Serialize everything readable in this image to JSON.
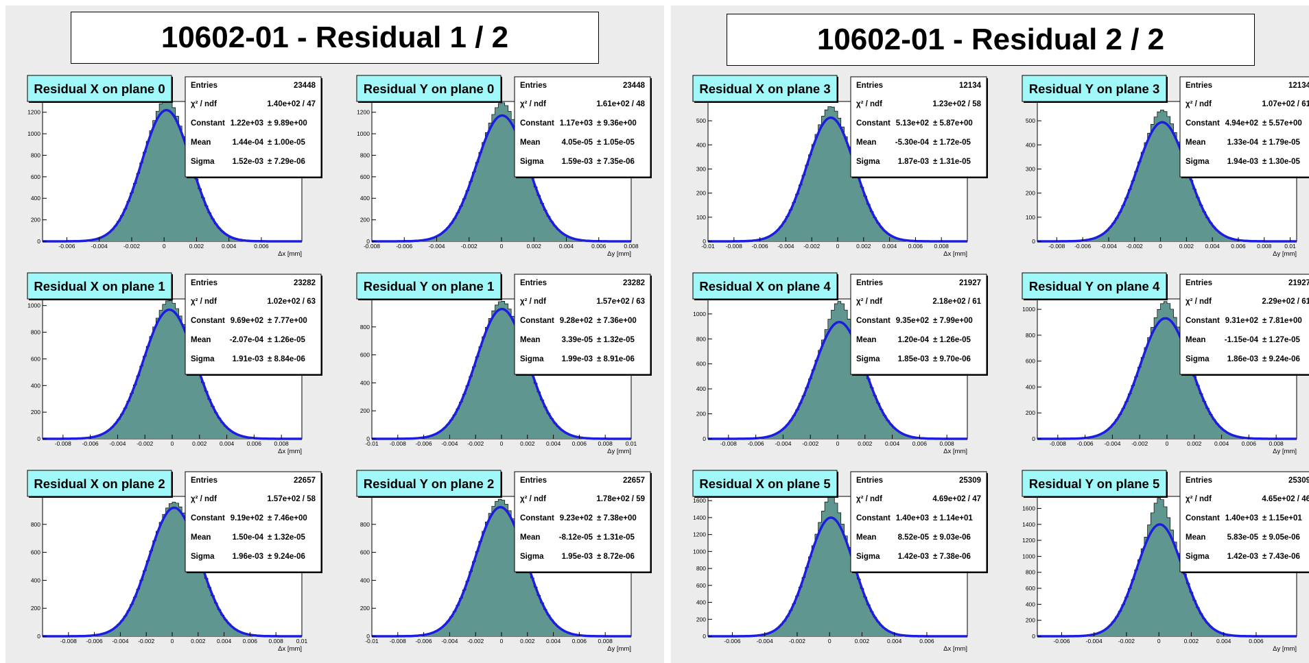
{
  "pages": [
    {
      "title": "10602-01 - Residual 1 / 2"
    },
    {
      "title": "10602-01 - Residual 2 / 2"
    }
  ],
  "stats_labels": {
    "entries": "Entries",
    "chi2": "χ² / ndf",
    "constant": "Constant",
    "mean": "Mean",
    "sigma": "Sigma"
  },
  "colors": {
    "hist_fill": "#5f9690",
    "fit_line": "#1d1de0",
    "title_bg": "#a0f8f8",
    "canvas_bg": "#ececec"
  },
  "chart_data": [
    {
      "type": "bar",
      "title": "Residual X on plane 0",
      "xlabel": "Δx [mm]",
      "xlim": [
        -0.0075,
        0.0085
      ],
      "ylim": [
        0,
        1300
      ],
      "xticks": [
        -0.006,
        -0.004,
        -0.002,
        0,
        0.002,
        0.004,
        0.006
      ],
      "xtick_labels": [
        "-0.006",
        "-0.004",
        "-0.002",
        "0",
        "0.002",
        "0.004",
        "0.006"
      ],
      "yticks": [
        0,
        200,
        400,
        600,
        800,
        1000,
        1200
      ],
      "ytick_labels": [
        "0",
        "200",
        "400",
        "600",
        "800",
        "1000",
        "1200"
      ],
      "entries": "23448",
      "chi2_ndf": "1.40e+02 / 47",
      "constant": "1.22e+03",
      "constant_err": "± 9.89e+00",
      "mean": "1.44e-04",
      "mean_err": "± 1.00e-05",
      "sigma": "1.52e-03",
      "sigma_err": "± 7.29e-06",
      "fit": {
        "constant": 1220,
        "mean": 0.000144,
        "sigma": 0.00152
      },
      "peak": 1330
    },
    {
      "type": "bar",
      "title": "Residual Y on plane 0",
      "xlabel": "Δy [mm]",
      "xlim": [
        -0.008,
        0.008
      ],
      "ylim": [
        0,
        1300
      ],
      "xticks": [
        -0.008,
        -0.006,
        -0.004,
        -0.002,
        0,
        0.002,
        0.004,
        0.006,
        0.008
      ],
      "xtick_labels": [
        "-0.008",
        "-0.006",
        "-0.004",
        "-0.002",
        "0",
        "0.002",
        "0.004",
        "0.006",
        "0.008"
      ],
      "yticks": [
        0,
        200,
        400,
        600,
        800,
        1000,
        1200
      ],
      "ytick_labels": [
        "0",
        "200",
        "400",
        "600",
        "800",
        "1000",
        "1200"
      ],
      "entries": "23448",
      "chi2_ndf": "1.61e+02 / 48",
      "constant": "1.17e+03",
      "constant_err": "± 9.36e+00",
      "mean": "4.05e-05",
      "mean_err": "± 1.05e-05",
      "sigma": "1.59e-03",
      "sigma_err": "± 7.35e-06",
      "fit": {
        "constant": 1170,
        "mean": 4.05e-05,
        "sigma": 0.00159
      },
      "peak": 1290
    },
    {
      "type": "bar",
      "title": "Residual X on plane 1",
      "xlabel": "Δx [mm]",
      "xlim": [
        -0.0095,
        0.0095
      ],
      "ylim": [
        0,
        1050
      ],
      "xticks": [
        -0.008,
        -0.006,
        -0.004,
        -0.002,
        0,
        0.002,
        0.004,
        0.006,
        0.008
      ],
      "xtick_labels": [
        "-0.008",
        "-0.006",
        "-0.004",
        "-0.002",
        "0",
        "0.002",
        "0.004",
        "0.006",
        "0.008"
      ],
      "yticks": [
        0,
        200,
        400,
        600,
        800,
        1000
      ],
      "ytick_labels": [
        "0",
        "200",
        "400",
        "600",
        "800",
        "1000"
      ],
      "entries": "23282",
      "chi2_ndf": "1.02e+02 / 63",
      "constant": "9.69e+02",
      "constant_err": "± 7.77e+00",
      "mean": "-2.07e-04",
      "mean_err": "± 1.26e-05",
      "sigma": "1.91e-03",
      "sigma_err": "± 8.84e-06",
      "fit": {
        "constant": 969,
        "mean": -0.000207,
        "sigma": 0.00191
      },
      "peak": 1040
    },
    {
      "type": "bar",
      "title": "Residual Y on plane 1",
      "xlabel": "Δy [mm]",
      "xlim": [
        -0.01,
        0.01
      ],
      "ylim": [
        0,
        1000
      ],
      "xticks": [
        -0.01,
        -0.008,
        -0.006,
        -0.004,
        -0.002,
        0,
        0.002,
        0.004,
        0.006,
        0.008,
        0.01
      ],
      "xtick_labels": [
        "-0.01",
        "-0.008",
        "-0.006",
        "-0.004",
        "-0.002",
        "0",
        "0.002",
        "0.004",
        "0.006",
        "0.008",
        "0.01"
      ],
      "yticks": [
        0,
        200,
        400,
        600,
        800
      ],
      "ytick_labels": [
        "0",
        "200",
        "400",
        "600",
        "800"
      ],
      "entries": "23282",
      "chi2_ndf": "1.57e+02 / 63",
      "constant": "9.28e+02",
      "constant_err": "± 7.36e+00",
      "mean": "3.39e-05",
      "mean_err": "± 1.32e-05",
      "sigma": "1.99e-03",
      "sigma_err": "± 8.91e-06",
      "fit": {
        "constant": 928,
        "mean": 3.39e-05,
        "sigma": 0.00199
      },
      "peak": 985
    },
    {
      "type": "bar",
      "title": "Residual X on plane 2",
      "xlabel": "Δx [mm]",
      "xlim": [
        -0.01,
        0.01
      ],
      "ylim": [
        0,
        1000
      ],
      "xticks": [
        -0.008,
        -0.006,
        -0.004,
        -0.002,
        0,
        0.002,
        0.004,
        0.006,
        0.008,
        0.01
      ],
      "xtick_labels": [
        "-0.008",
        "-0.006",
        "-0.004",
        "-0.002",
        "0",
        "0.002",
        "0.004",
        "0.006",
        "0.008",
        "0.01"
      ],
      "yticks": [
        0,
        200,
        400,
        600,
        800
      ],
      "ytick_labels": [
        "0",
        "200",
        "400",
        "600",
        "800"
      ],
      "entries": "22657",
      "chi2_ndf": "1.57e+02 / 58",
      "constant": "9.19e+02",
      "constant_err": "± 7.46e+00",
      "mean": "1.50e-04",
      "mean_err": "± 1.32e-05",
      "sigma": "1.96e-03",
      "sigma_err": "± 9.24e-06",
      "fit": {
        "constant": 919,
        "mean": 0.00015,
        "sigma": 0.00196
      },
      "peak": 960
    },
    {
      "type": "bar",
      "title": "Residual Y on plane 2",
      "xlabel": "Δy [mm]",
      "xlim": [
        -0.01,
        0.01
      ],
      "ylim": [
        0,
        1000
      ],
      "xticks": [
        -0.01,
        -0.008,
        -0.006,
        -0.004,
        -0.002,
        0,
        0.002,
        0.004,
        0.006,
        0.008
      ],
      "xtick_labels": [
        "-0.01",
        "-0.008",
        "-0.006",
        "-0.004",
        "-0.002",
        "0",
        "0.002",
        "0.004",
        "0.006",
        "0.008"
      ],
      "yticks": [
        0,
        200,
        400,
        600,
        800
      ],
      "ytick_labels": [
        "0",
        "200",
        "400",
        "600",
        "800"
      ],
      "entries": "22657",
      "chi2_ndf": "1.78e+02 / 59",
      "constant": "9.23e+02",
      "constant_err": "± 7.38e+00",
      "mean": "-8.12e-05",
      "mean_err": "± 1.31e-05",
      "sigma": "1.95e-03",
      "sigma_err": "± 8.72e-06",
      "fit": {
        "constant": 923,
        "mean": -8.12e-05,
        "sigma": 0.00195
      },
      "peak": 980
    },
    {
      "type": "bar",
      "title": "Residual X on plane 3",
      "xlabel": "Δx [mm]",
      "xlim": [
        -0.01,
        0.01
      ],
      "ylim": [
        0,
        580
      ],
      "xticks": [
        -0.01,
        -0.008,
        -0.006,
        -0.004,
        -0.002,
        0,
        0.002,
        0.004,
        0.006,
        0.008
      ],
      "xtick_labels": [
        "-0.01",
        "-0.008",
        "-0.006",
        "-0.004",
        "-0.002",
        "0",
        "0.002",
        "0.004",
        "0.006",
        "0.008"
      ],
      "yticks": [
        0,
        100,
        200,
        300,
        400,
        500
      ],
      "ytick_labels": [
        "0",
        "100",
        "200",
        "300",
        "400",
        "500"
      ],
      "entries": "12134",
      "chi2_ndf": "1.23e+02 / 58",
      "constant": "5.13e+02",
      "constant_err": "± 5.87e+00",
      "mean": "-5.30e-04",
      "mean_err": "± 1.72e-05",
      "sigma": "1.87e-03",
      "sigma_err": "± 1.31e-05",
      "fit": {
        "constant": 513,
        "mean": -0.00053,
        "sigma": 0.00187
      },
      "peak": 560
    },
    {
      "type": "bar",
      "title": "Residual Y on plane 3",
      "xlabel": "Δy [mm]",
      "xlim": [
        -0.0095,
        0.0105
      ],
      "ylim": [
        0,
        580
      ],
      "xticks": [
        -0.008,
        -0.006,
        -0.004,
        -0.002,
        0,
        0.002,
        0.004,
        0.006,
        0.008,
        0.01
      ],
      "xtick_labels": [
        "-0.008",
        "-0.006",
        "-0.004",
        "-0.002",
        "0",
        "0.002",
        "0.004",
        "0.006",
        "0.008",
        "0.01"
      ],
      "yticks": [
        0,
        100,
        200,
        300,
        400,
        500
      ],
      "ytick_labels": [
        "0",
        "100",
        "200",
        "300",
        "400",
        "500"
      ],
      "entries": "12134",
      "chi2_ndf": "1.07e+02 / 61",
      "constant": "4.94e+02",
      "constant_err": "± 5.57e+00",
      "mean": "1.33e-04",
      "mean_err": "± 1.79e-05",
      "sigma": "1.94e-03",
      "sigma_err": "± 1.30e-05",
      "fit": {
        "constant": 494,
        "mean": 0.000133,
        "sigma": 0.00194
      },
      "peak": 545
    },
    {
      "type": "bar",
      "title": "Residual X on plane 4",
      "xlabel": "Δx [mm]",
      "xlim": [
        -0.0095,
        0.0095
      ],
      "ylim": [
        0,
        1120
      ],
      "xticks": [
        -0.008,
        -0.006,
        -0.004,
        -0.002,
        0,
        0.002,
        0.004,
        0.006,
        0.008
      ],
      "xtick_labels": [
        "-0.008",
        "-0.006",
        "-0.004",
        "-0.002",
        "0",
        "0.002",
        "0.004",
        "0.006",
        "0.008"
      ],
      "yticks": [
        0,
        200,
        400,
        600,
        800,
        1000
      ],
      "ytick_labels": [
        "0",
        "200",
        "400",
        "600",
        "800",
        "1000"
      ],
      "entries": "21927",
      "chi2_ndf": "2.18e+02 / 61",
      "constant": "9.35e+02",
      "constant_err": "± 7.99e+00",
      "mean": "1.20e-04",
      "mean_err": "± 1.26e-05",
      "sigma": "1.85e-03",
      "sigma_err": "± 9.70e-06",
      "fit": {
        "constant": 935,
        "mean": 0.00012,
        "sigma": 0.00185
      },
      "peak": 1100
    },
    {
      "type": "bar",
      "title": "Residual Y on plane 4",
      "xlabel": "Δy [mm]",
      "xlim": [
        -0.0095,
        0.0095
      ],
      "ylim": [
        0,
        1080
      ],
      "xticks": [
        -0.008,
        -0.006,
        -0.004,
        -0.002,
        0,
        0.002,
        0.004,
        0.006,
        0.008
      ],
      "xtick_labels": [
        "-0.008",
        "-0.006",
        "-0.004",
        "-0.002",
        "0",
        "0.002",
        "0.004",
        "0.006",
        "0.008"
      ],
      "yticks": [
        0,
        200,
        400,
        600,
        800,
        1000
      ],
      "ytick_labels": [
        "0",
        "200",
        "400",
        "600",
        "800",
        "1000"
      ],
      "entries": "21927",
      "chi2_ndf": "2.29e+02 / 61",
      "constant": "9.31e+02",
      "constant_err": "± 7.81e+00",
      "mean": "-1.15e-04",
      "mean_err": "± 1.27e-05",
      "sigma": "1.86e-03",
      "sigma_err": "± 9.24e-06",
      "fit": {
        "constant": 931,
        "mean": -0.000115,
        "sigma": 0.00186
      },
      "peak": 1060
    },
    {
      "type": "bar",
      "title": "Residual X on plane 5",
      "xlabel": "Δx [mm]",
      "xlim": [
        -0.0075,
        0.0085
      ],
      "ylim": [
        0,
        1650
      ],
      "xticks": [
        -0.006,
        -0.004,
        -0.002,
        0,
        0.002,
        0.004,
        0.006
      ],
      "xtick_labels": [
        "-0.006",
        "-0.004",
        "-0.002",
        "0",
        "0.002",
        "0.004",
        "0.006"
      ],
      "yticks": [
        0,
        200,
        400,
        600,
        800,
        1000,
        1200,
        1400,
        1600
      ],
      "ytick_labels": [
        "0",
        "200",
        "400",
        "600",
        "800",
        "1000",
        "1200",
        "1400",
        "1600"
      ],
      "entries": "25309",
      "chi2_ndf": "4.69e+02 / 47",
      "constant": "1.40e+03",
      "constant_err": "± 1.14e+01",
      "mean": "8.52e-05",
      "mean_err": "± 9.03e-06",
      "sigma": "1.42e-03",
      "sigma_err": "± 7.38e-06",
      "fit": {
        "constant": 1400,
        "mean": 8.52e-05,
        "sigma": 0.00142
      },
      "peak": 1650
    },
    {
      "type": "bar",
      "title": "Residual Y on plane 5",
      "xlabel": "Δy [mm]",
      "xlim": [
        -0.0075,
        0.0085
      ],
      "ylim": [
        0,
        1750
      ],
      "xticks": [
        -0.006,
        -0.004,
        -0.002,
        0,
        0.002,
        0.004,
        0.006
      ],
      "xtick_labels": [
        "-0.006",
        "-0.004",
        "-0.002",
        "0",
        "0.002",
        "0.004",
        "0.006"
      ],
      "yticks": [
        0,
        200,
        400,
        600,
        800,
        1000,
        1200,
        1400,
        1600
      ],
      "ytick_labels": [
        "0",
        "200",
        "400",
        "600",
        "800",
        "1000",
        "1200",
        "1400",
        "1600"
      ],
      "entries": "25309",
      "chi2_ndf": "4.65e+02 / 46",
      "constant": "1.40e+03",
      "constant_err": "± 1.15e+01",
      "mean": "5.83e-05",
      "mean_err": "± 9.05e-06",
      "sigma": "1.42e-03",
      "sigma_err": "± 7.43e-06",
      "fit": {
        "constant": 1400,
        "mean": 5.83e-05,
        "sigma": 0.00142
      },
      "peak": 1730
    }
  ]
}
